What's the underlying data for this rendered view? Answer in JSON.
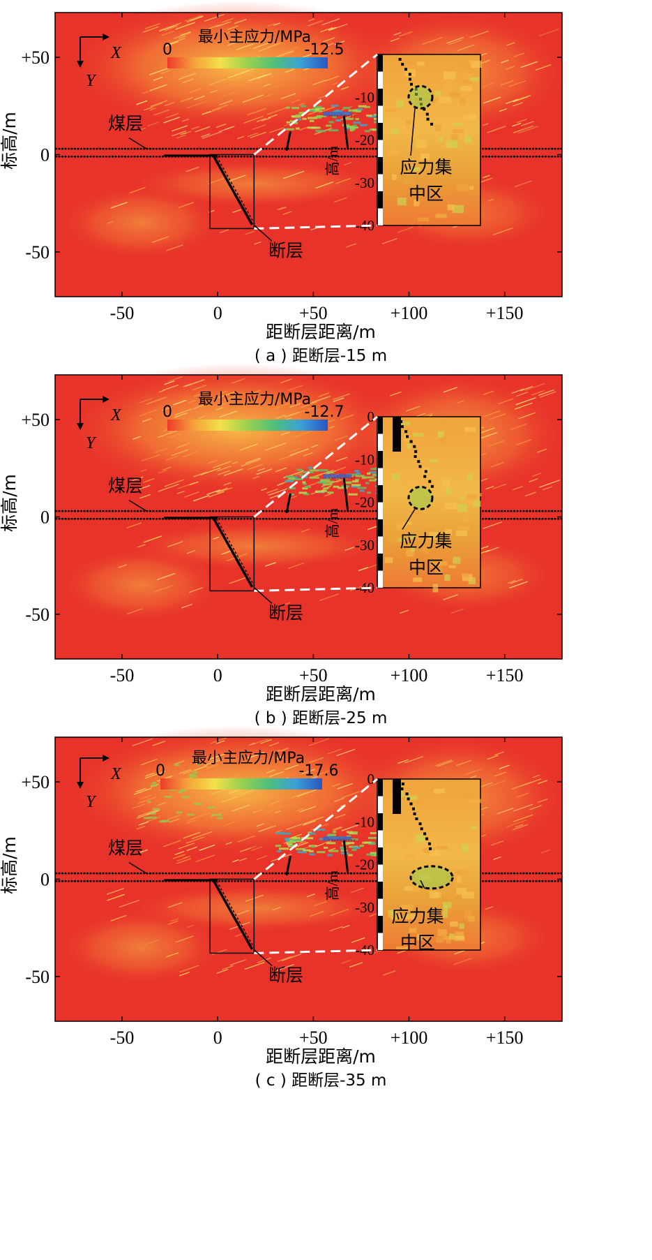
{
  "chart_data": [
    {
      "type": "heatmap",
      "caption": "( a ) 距断层-15 m",
      "xlabel": "距断层距离/m",
      "ylabel": "标高/m",
      "x_ticks": [
        "-50",
        "0",
        "+50",
        "+100",
        "+150"
      ],
      "x_tick_values": [
        -50,
        0,
        50,
        100,
        150
      ],
      "y_ticks": [
        "+50",
        "0",
        "-50"
      ],
      "y_tick_values": [
        50,
        0,
        -50
      ],
      "xlim": [
        -85,
        180
      ],
      "ylim": [
        -73,
        73
      ],
      "colorbar": {
        "title": "最小主应力/MPa",
        "min_label": "0",
        "max_label": "-12.5",
        "min": 0,
        "max": -12.5
      },
      "annotations": {
        "coal_seam": "煤层",
        "fault": "断层",
        "stress_zone_line1": "应力集",
        "stress_zone_line2": "中区"
      },
      "inset": {
        "y_ticks": [
          "-10",
          "-20",
          "-30",
          "-40"
        ],
        "y_tick_values": [
          -10,
          -20,
          -30,
          -40
        ],
        "top_label": "",
        "ylabel": "高/m",
        "zone_center_y": -10
      },
      "coordinate_axes": {
        "x": "X",
        "y": "Y"
      },
      "fault_trace": [
        [
          -2,
          -1
        ],
        [
          18,
          -36
        ]
      ],
      "coal_seam_elevations": [
        3,
        -1
      ]
    },
    {
      "type": "heatmap",
      "caption": "( b ) 距断层-25 m",
      "xlabel": "距断层距离/m",
      "ylabel": "标高/m",
      "x_ticks": [
        "-50",
        "0",
        "+50",
        "+100",
        "+150"
      ],
      "x_tick_values": [
        -50,
        0,
        50,
        100,
        150
      ],
      "y_ticks": [
        "+50",
        "0",
        "-50"
      ],
      "y_tick_values": [
        50,
        0,
        -50
      ],
      "xlim": [
        -85,
        180
      ],
      "ylim": [
        -73,
        73
      ],
      "colorbar": {
        "title": "最小主应力/MPa",
        "min_label": "0",
        "max_label": "-12.7",
        "min": 0,
        "max": -12.7
      },
      "annotations": {
        "coal_seam": "煤层",
        "fault": "断层",
        "stress_zone_line1": "应力集",
        "stress_zone_line2": "中区"
      },
      "inset": {
        "y_ticks": [
          "0",
          "-10",
          "-20",
          "-30",
          "-40"
        ],
        "y_tick_values": [
          0,
          -10,
          -20,
          -30,
          -40
        ],
        "top_label": "0",
        "ylabel": "高/m",
        "zone_center_y": -19
      },
      "coordinate_axes": {
        "x": "X",
        "y": "Y"
      },
      "fault_trace": [
        [
          -2,
          -1
        ],
        [
          18,
          -36
        ]
      ],
      "coal_seam_elevations": [
        3,
        -1
      ]
    },
    {
      "type": "heatmap",
      "caption": "( c ) 距断层-35 m",
      "xlabel": "距断层距离/m",
      "ylabel": "标高/m",
      "x_ticks": [
        "-50",
        "0",
        "+50",
        "+100",
        "+150"
      ],
      "x_tick_values": [
        -50,
        0,
        50,
        100,
        150
      ],
      "y_ticks": [
        "+50",
        "0",
        "-50"
      ],
      "y_tick_values": [
        50,
        0,
        -50
      ],
      "xlim": [
        -85,
        180
      ],
      "ylim": [
        -73,
        73
      ],
      "colorbar": {
        "title": "最小主应力/MPa",
        "min_label": "0",
        "max_label": "-17.6",
        "min": 0,
        "max": -17.6
      },
      "annotations": {
        "coal_seam": "煤层",
        "fault": "断层",
        "stress_zone_line1": "应力集",
        "stress_zone_line2": "中区"
      },
      "inset": {
        "y_ticks": [
          "0",
          "-10",
          "-20",
          "-30",
          "-40"
        ],
        "y_tick_values": [
          0,
          -10,
          -20,
          -30,
          -40
        ],
        "top_label": "0",
        "ylabel": "高/m",
        "zone_center_y": -23
      },
      "coordinate_axes": {
        "x": "X",
        "y": "Y"
      },
      "fault_trace": [
        [
          -2,
          -1
        ],
        [
          18,
          -36
        ]
      ],
      "coal_seam_elevations": [
        3,
        -1
      ]
    }
  ],
  "colors": {
    "background_field": "#e8332a",
    "colorbar_stops": [
      "#ee3b2c",
      "#f4a23a",
      "#f2e14a",
      "#9bd04e",
      "#4fc07a",
      "#3aa0d8",
      "#2a55c0"
    ]
  }
}
